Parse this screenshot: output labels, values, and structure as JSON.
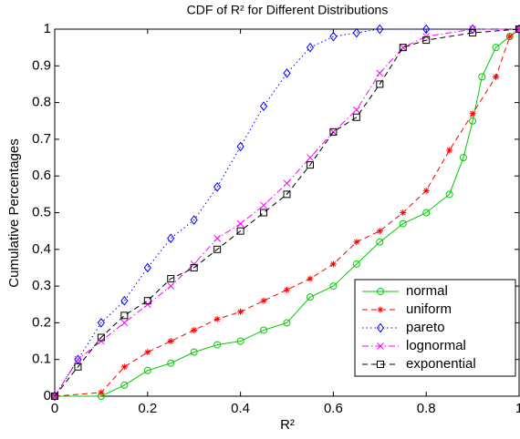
{
  "chart_data": {
    "type": "line",
    "title": "CDF of R² for Different Distributions",
    "x_label": "R²",
    "y_label": "Cumulative Percentages",
    "xlim": [
      0,
      1
    ],
    "ylim": [
      0,
      1
    ],
    "xticks": [
      0,
      0.2,
      0.4,
      0.6,
      0.8,
      1
    ],
    "yticks": [
      0,
      0.1,
      0.2,
      0.3,
      0.4,
      0.5,
      0.6,
      0.7,
      0.8,
      0.9,
      1
    ],
    "grid": false,
    "legend": "lower right",
    "series": [
      {
        "name": "normal",
        "color": "#00cc00",
        "marker": "circle",
        "dash": "solid",
        "x": [
          0,
          0.1,
          0.15,
          0.2,
          0.25,
          0.3,
          0.35,
          0.4,
          0.45,
          0.5,
          0.55,
          0.6,
          0.65,
          0.7,
          0.75,
          0.8,
          0.85,
          0.88,
          0.9,
          0.92,
          0.95,
          0.98,
          1
        ],
        "values": [
          0,
          0,
          0.03,
          0.07,
          0.09,
          0.12,
          0.14,
          0.15,
          0.18,
          0.2,
          0.27,
          0.3,
          0.36,
          0.42,
          0.47,
          0.5,
          0.55,
          0.65,
          0.75,
          0.87,
          0.95,
          0.98,
          1
        ]
      },
      {
        "name": "uniform",
        "color": "#ff0000",
        "marker": "asterisk",
        "dash": "dashed",
        "x": [
          0,
          0.1,
          0.15,
          0.2,
          0.25,
          0.3,
          0.35,
          0.4,
          0.45,
          0.5,
          0.55,
          0.6,
          0.65,
          0.7,
          0.75,
          0.8,
          0.85,
          0.9,
          0.95,
          0.98,
          1
        ],
        "values": [
          0,
          0.01,
          0.08,
          0.12,
          0.15,
          0.18,
          0.21,
          0.23,
          0.26,
          0.29,
          0.32,
          0.36,
          0.42,
          0.45,
          0.5,
          0.56,
          0.67,
          0.77,
          0.87,
          0.98,
          1
        ]
      },
      {
        "name": "pareto",
        "color": "#0000ff",
        "marker": "diamond",
        "dash": "dotted",
        "x": [
          0,
          0.05,
          0.1,
          0.15,
          0.2,
          0.25,
          0.3,
          0.35,
          0.4,
          0.45,
          0.5,
          0.55,
          0.6,
          0.65,
          0.7,
          0.8,
          0.9,
          1
        ],
        "values": [
          0,
          0.1,
          0.2,
          0.26,
          0.35,
          0.43,
          0.48,
          0.57,
          0.68,
          0.79,
          0.88,
          0.95,
          0.98,
          0.99,
          1,
          1,
          1,
          1
        ]
      },
      {
        "name": "lognormal",
        "color": "#ff00ff",
        "marker": "cross",
        "dash": "dashdot",
        "x": [
          0,
          0.05,
          0.1,
          0.15,
          0.2,
          0.25,
          0.3,
          0.35,
          0.4,
          0.45,
          0.5,
          0.55,
          0.6,
          0.65,
          0.7,
          0.75,
          0.8,
          0.9,
          1
        ],
        "values": [
          0,
          0.1,
          0.15,
          0.2,
          0.25,
          0.3,
          0.36,
          0.43,
          0.47,
          0.52,
          0.58,
          0.65,
          0.72,
          0.78,
          0.88,
          0.95,
          0.98,
          1,
          1
        ]
      },
      {
        "name": "exponential",
        "color": "#000000",
        "marker": "square",
        "dash": "dashed",
        "x": [
          0,
          0.05,
          0.1,
          0.15,
          0.2,
          0.25,
          0.3,
          0.35,
          0.4,
          0.45,
          0.5,
          0.55,
          0.6,
          0.65,
          0.7,
          0.75,
          0.8,
          0.9,
          1
        ],
        "values": [
          0,
          0.08,
          0.16,
          0.22,
          0.26,
          0.32,
          0.35,
          0.4,
          0.45,
          0.5,
          0.55,
          0.63,
          0.72,
          0.76,
          0.85,
          0.95,
          0.97,
          0.99,
          1
        ]
      }
    ]
  }
}
